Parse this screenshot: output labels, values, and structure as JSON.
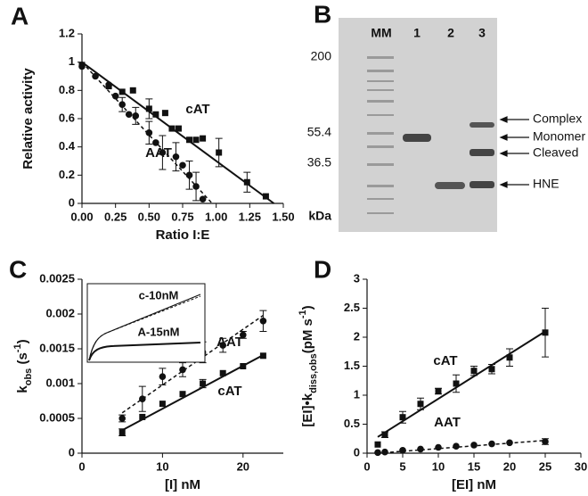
{
  "chart_data": [
    {
      "type": "scatter",
      "panel": "A",
      "xlabel": "Ratio I:E",
      "ylabel": [
        "Relative activity"
      ],
      "ylabel_styles": [
        "normal"
      ],
      "xlim": [
        0,
        1.5
      ],
      "ylim": [
        0,
        1.2
      ],
      "xticks": [
        {
          "value": 0,
          "label": "0.00"
        },
        {
          "value": 0.25,
          "label": "0.25"
        },
        {
          "value": 0.5,
          "label": "0.50"
        },
        {
          "value": 0.75,
          "label": "0.75"
        },
        {
          "value": 1,
          "label": "1.00"
        },
        {
          "value": 1.25,
          "label": "1.25"
        },
        {
          "value": 1.5,
          "label": "1.50"
        }
      ],
      "yticks": [
        0,
        0.2,
        0.4,
        0.6,
        0.8,
        1,
        1.2
      ],
      "series": [
        {
          "name": "cAT",
          "marker": "square",
          "color": "#111111",
          "x": [
            0,
            0.2,
            0.3,
            0.38,
            0.5,
            0.55,
            0.62,
            0.67,
            0.72,
            0.8,
            0.85,
            0.9,
            1.02,
            1.23,
            1.37
          ],
          "values": [
            0.98,
            0.83,
            0.79,
            0.8,
            0.67,
            0.63,
            0.64,
            0.53,
            0.53,
            0.45,
            0.45,
            0.46,
            0.36,
            0.15,
            0.05
          ],
          "errors": [
            null,
            null,
            null,
            null,
            0.07,
            null,
            null,
            null,
            null,
            null,
            null,
            null,
            0.1,
            0.07,
            null
          ],
          "fit": {
            "style": "solid",
            "x": [
              0,
              1.43
            ],
            "values": [
              1,
              0
            ]
          }
        },
        {
          "name": "AAT",
          "marker": "circle",
          "color": "#111111",
          "x": [
            0,
            0.1,
            0.2,
            0.25,
            0.3,
            0.35,
            0.4,
            0.5,
            0.55,
            0.6,
            0.7,
            0.75,
            0.8,
            0.85,
            0.9
          ],
          "values": [
            0.97,
            0.9,
            0.84,
            0.76,
            0.7,
            0.63,
            0.62,
            0.5,
            0.43,
            0.36,
            0.33,
            0.27,
            0.2,
            0.12,
            0.03
          ],
          "errors": [
            null,
            null,
            null,
            null,
            0.05,
            null,
            0.06,
            0.08,
            null,
            0.12,
            0.1,
            null,
            0.1,
            0.1,
            null
          ],
          "fit": {
            "style": "dashed",
            "x": [
              0,
              0.97
            ],
            "values": [
              1,
              0
            ]
          }
        }
      ]
    },
    {
      "type": "scatter",
      "panel": "C",
      "xlabel": "[I] nM",
      "ylabel": [
        "k",
        "obs",
        " (s",
        "-1",
        ")"
      ],
      "ylabel_styles": [
        "normal",
        "sub",
        "normal",
        "sup",
        "normal"
      ],
      "xlim": [
        0,
        25
      ],
      "ylim": [
        0,
        0.0025
      ],
      "xticks": [
        0,
        10,
        20
      ],
      "yticks": [
        0,
        0.0005,
        0.001,
        0.0015,
        0.002,
        0.0025
      ],
      "inset_labels": [
        "c-10nM",
        "A-15nM"
      ],
      "series": [
        {
          "name": "AAT",
          "marker": "circle",
          "color": "#111111",
          "x": [
            5,
            7.5,
            10,
            12.5,
            15,
            17.5,
            20,
            22.5
          ],
          "values": [
            0.0005,
            0.00078,
            0.0011,
            0.0012,
            0.00145,
            0.00155,
            0.0017,
            0.0019
          ],
          "errors": [
            5e-05,
            0.00018,
            0.00012,
            0.0001,
            0.00015,
            0.0001,
            5e-05,
            0.00015
          ],
          "fit": {
            "style": "dashed",
            "x": [
              5,
              22.5
            ],
            "values": [
              0.00058,
              0.00198
            ]
          }
        },
        {
          "name": "cAT",
          "marker": "square",
          "color": "#111111",
          "x": [
            5,
            7.5,
            10,
            12.5,
            15,
            17.5,
            20,
            22.5
          ],
          "values": [
            0.0003,
            0.00052,
            0.00071,
            0.00085,
            0.001,
            0.00115,
            0.00125,
            0.0014
          ],
          "errors": [
            5e-05,
            null,
            null,
            null,
            6e-05,
            null,
            null,
            null
          ],
          "fit": {
            "style": "solid",
            "x": [
              5,
              22.5
            ],
            "values": [
              0.00033,
              0.00141
            ]
          }
        }
      ]
    },
    {
      "type": "scatter",
      "panel": "D",
      "xlabel": "[EI] nM",
      "ylabel": [
        "[EI]•k",
        "diss,obs",
        "(pM s",
        "-1",
        ")"
      ],
      "ylabel_styles": [
        "normal",
        "sub",
        "normal",
        "sup",
        "normal"
      ],
      "xlim": [
        0,
        30
      ],
      "ylim": [
        0,
        3
      ],
      "xticks": [
        0,
        5,
        10,
        15,
        20,
        25,
        30
      ],
      "yticks": [
        0,
        0.5,
        1,
        1.5,
        2,
        2.5,
        3
      ],
      "series": [
        {
          "name": "cAT",
          "marker": "square",
          "color": "#111111",
          "x": [
            1.5,
            2.5,
            5,
            7.5,
            10,
            12.5,
            15,
            17.5,
            20,
            25
          ],
          "values": [
            0.15,
            0.32,
            0.62,
            0.85,
            1.07,
            1.2,
            1.42,
            1.45,
            1.65,
            2.08
          ],
          "errors": [
            null,
            0.05,
            0.1,
            0.1,
            0.05,
            0.15,
            0.08,
            0.08,
            0.15,
            0.42
          ],
          "fit": {
            "style": "solid",
            "x": [
              1.5,
              25
            ],
            "values": [
              0.28,
              2.1
            ]
          }
        },
        {
          "name": "AAT",
          "marker": "circle",
          "color": "#111111",
          "x": [
            1.5,
            2.5,
            5,
            7.5,
            10,
            12.5,
            15,
            17.5,
            20,
            25
          ],
          "values": [
            0.01,
            0.02,
            0.05,
            0.07,
            0.1,
            0.12,
            0.14,
            0.16,
            0.18,
            0.2
          ],
          "errors": [
            null,
            null,
            null,
            null,
            null,
            null,
            null,
            null,
            null,
            0.05
          ],
          "fit": {
            "style": "dashed",
            "x": [
              1.5,
              25
            ],
            "values": [
              0,
              0.22
            ]
          }
        }
      ]
    }
  ],
  "gel": {
    "panel": "B",
    "lanes": [
      "MM",
      "1",
      "2",
      "3"
    ],
    "markers": [
      "200",
      "55.4",
      "36.5"
    ],
    "unit": "kDa",
    "bands": [
      "Complex",
      "Monomer",
      "Cleaved",
      "HNE"
    ]
  }
}
